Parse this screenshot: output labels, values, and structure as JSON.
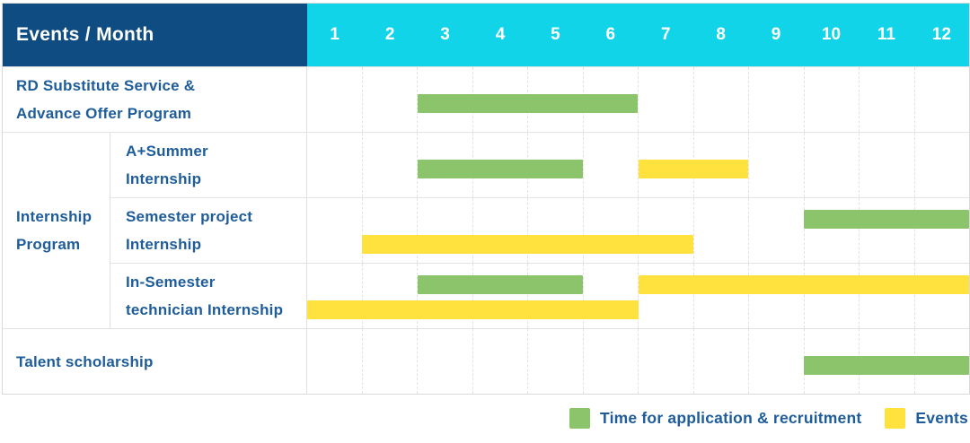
{
  "colors": {
    "header_bg": "#0f4c81",
    "months_bg": "#12d4e8",
    "header_text": "#ffffff",
    "label_text": "#1e5c9a",
    "grid_line": "#e2e2e2"
  },
  "header": {
    "title": "Events / Month"
  },
  "chart_data": {
    "type": "gantt",
    "x_unit": "month",
    "x_range": [
      1,
      12
    ],
    "months": [
      "1",
      "2",
      "3",
      "4",
      "5",
      "6",
      "7",
      "8",
      "9",
      "10",
      "11",
      "12"
    ],
    "colors": {
      "recruitment": "#8bc46a",
      "event": "#ffe23e"
    },
    "rows": [
      {
        "group": "",
        "label": "RD Substitute Service &\nAdvance Offer Program",
        "bars": [
          {
            "kind": "recruitment",
            "start": 3,
            "end": 6,
            "lane": "center"
          }
        ]
      },
      {
        "group": "Internship\nProgram",
        "label": "A+Summer\nInternship",
        "bars": [
          {
            "kind": "recruitment",
            "start": 3,
            "end": 5,
            "lane": "center"
          },
          {
            "kind": "event",
            "start": 7,
            "end": 8,
            "lane": "center"
          }
        ]
      },
      {
        "group": "Internship\nProgram",
        "label": "Semester project\nInternship",
        "bars": [
          {
            "kind": "recruitment",
            "start": 10,
            "end": 12,
            "lane": "top"
          },
          {
            "kind": "event",
            "start": 2,
            "end": 7,
            "lane": "bottom"
          }
        ]
      },
      {
        "group": "Internship\nProgram",
        "label": "In-Semester\ntechnician Internship",
        "bars": [
          {
            "kind": "recruitment",
            "start": 3,
            "end": 5,
            "lane": "top"
          },
          {
            "kind": "event",
            "start": 7,
            "end": 12,
            "lane": "top"
          },
          {
            "kind": "event",
            "start": 1,
            "end": 6,
            "lane": "bottom"
          }
        ]
      },
      {
        "group": "",
        "label": "Talent scholarship",
        "bars": [
          {
            "kind": "recruitment",
            "start": 10,
            "end": 12,
            "lane": "center"
          }
        ]
      }
    ],
    "legend": [
      {
        "kind": "recruitment",
        "label": "Time for application & recruitment"
      },
      {
        "kind": "event",
        "label": "Events"
      }
    ]
  }
}
